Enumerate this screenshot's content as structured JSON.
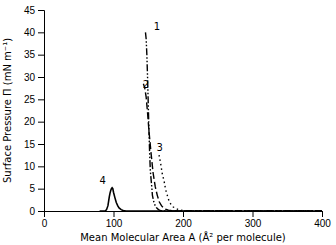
{
  "chart_data": {
    "type": "line",
    "x_label": "Mean Molecular Area A (Å² per molecule)",
    "y_label": "Surface Pressure Π (mN m⁻¹)",
    "color": "#000000",
    "xlim": [
      0,
      400
    ],
    "ylim": [
      0,
      45
    ],
    "xticks": [
      0,
      100,
      200,
      300,
      400
    ],
    "yticks": [
      0,
      5,
      10,
      15,
      20,
      25,
      30,
      35,
      40,
      45
    ],
    "series": [
      {
        "line_style": "dashdotdotted",
        "x": [
          400,
          350,
          320,
          300,
          280,
          260,
          240,
          220,
          210,
          200,
          195,
          190,
          185,
          182,
          179,
          176,
          173,
          170,
          168,
          166,
          164,
          162,
          160,
          158,
          156,
          155,
          153,
          152,
          151,
          150,
          149,
          148,
          147,
          146
        ],
        "values": [
          0,
          0,
          0,
          0,
          0,
          0,
          0,
          0,
          0,
          0,
          0,
          0,
          0,
          0,
          0,
          0,
          0,
          0,
          0.1,
          0.2,
          0.4,
          0.7,
          1.2,
          2.0,
          3.5,
          5.5,
          9.0,
          13.0,
          18.0,
          24.0,
          30.0,
          35.0,
          38.5,
          40.0
        ]
      },
      {
        "line_style": "dashed",
        "x": [
          400,
          350,
          300,
          260,
          240,
          220,
          205,
          195,
          188,
          183,
          179,
          175,
          172,
          169,
          166,
          163,
          160,
          157,
          154,
          151,
          149,
          147,
          145,
          143
        ],
        "values": [
          0,
          0,
          0,
          0,
          0,
          0,
          0,
          0,
          0,
          0.1,
          0.2,
          0.4,
          0.7,
          1.2,
          2.0,
          3.5,
          5.5,
          8.5,
          13.0,
          18.0,
          22.0,
          25.5,
          27.5,
          28.5
        ]
      },
      {
        "line_style": "dotted",
        "x": [
          400,
          350,
          320,
          300,
          280,
          260,
          250,
          240,
          230,
          222,
          215,
          209,
          204,
          200,
          196,
          192,
          189,
          186,
          183,
          180,
          178,
          175,
          173,
          170,
          168,
          165
        ],
        "values": [
          0,
          0,
          0,
          0,
          0,
          0,
          0,
          0,
          0,
          0,
          0,
          0,
          0,
          0.1,
          0.2,
          0.4,
          0.6,
          0.9,
          1.4,
          2.2,
          3.2,
          4.8,
          6.5,
          8.5,
          10.5,
          13.0
        ]
      },
      {
        "line_style": "solid",
        "x": [
          400,
          200,
          160,
          140,
          125,
          118,
          114,
          111,
          108,
          106,
          104,
          102,
          100,
          99,
          98,
          97,
          96,
          95,
          94,
          93,
          92,
          90,
          88,
          85,
          80
        ],
        "values": [
          0,
          0,
          0,
          0,
          0,
          0,
          0.1,
          0.3,
          0.7,
          1.2,
          1.9,
          3.0,
          4.2,
          5.0,
          5.2,
          5.0,
          4.6,
          4.0,
          3.2,
          2.2,
          1.2,
          0.3,
          0.0,
          0.0,
          0.0
        ]
      }
    ],
    "annotations": [
      {
        "text": "1",
        "x": 158,
        "y": 40
      },
      {
        "text": "2",
        "x": 142,
        "y": 27
      },
      {
        "text": "3",
        "x": 162,
        "y": 13
      },
      {
        "text": "4",
        "x": 80,
        "y": 5.5
      }
    ]
  }
}
